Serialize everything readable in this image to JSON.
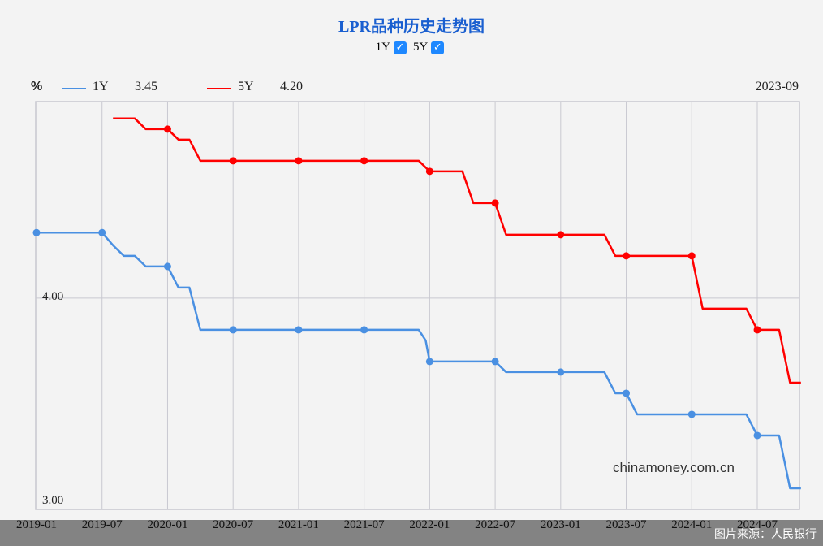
{
  "chart_data": {
    "type": "line",
    "title": "LPR品种历史走势图",
    "unit": "%",
    "crosshair_date": "2023-09",
    "x_ticks": [
      "2019-01",
      "2019-07",
      "2020-01",
      "2020-07",
      "2021-01",
      "2021-07",
      "2022-01",
      "2022-07",
      "2023-01",
      "2023-07",
      "2024-01",
      "2024-07"
    ],
    "y_ticks": [
      "4.00",
      "3.00"
    ],
    "ylim": [
      3.0,
      5.0
    ],
    "grid": true,
    "series": [
      {
        "name": "1Y",
        "color": "#4a90e2",
        "current_value": "3.45",
        "points": [
          [
            "2019-01",
            4.31
          ],
          [
            "2019-07",
            4.31
          ],
          [
            "2019-08",
            4.25
          ],
          [
            "2019-09",
            4.2
          ],
          [
            "2019-10",
            4.2
          ],
          [
            "2019-11",
            4.15
          ],
          [
            "2019-12",
            4.15
          ],
          [
            "2020-01",
            4.15
          ],
          [
            "2020-02",
            4.05
          ],
          [
            "2020-03",
            4.05
          ],
          [
            "2020-04",
            3.85
          ],
          [
            "2020-07",
            3.85
          ],
          [
            "2021-01",
            3.85
          ],
          [
            "2021-07",
            3.85
          ],
          [
            "2021-12",
            3.85
          ],
          [
            "2021-12-20",
            3.8
          ],
          [
            "2022-01",
            3.7
          ],
          [
            "2022-07",
            3.7
          ],
          [
            "2022-08",
            3.65
          ],
          [
            "2023-01",
            3.65
          ],
          [
            "2023-05",
            3.65
          ],
          [
            "2023-06",
            3.55
          ],
          [
            "2023-07",
            3.55
          ],
          [
            "2023-08",
            3.45
          ],
          [
            "2024-01",
            3.45
          ],
          [
            "2024-06",
            3.45
          ],
          [
            "2024-07",
            3.35
          ],
          [
            "2024-09",
            3.35
          ],
          [
            "2024-10",
            3.1
          ],
          [
            "2024-11",
            3.1
          ]
        ],
        "markers": [
          "2019-01",
          "2019-07",
          "2020-01",
          "2020-07",
          "2021-01",
          "2021-07",
          "2022-01",
          "2022-07",
          "2023-01",
          "2023-07",
          "2024-01",
          "2024-07"
        ]
      },
      {
        "name": "5Y",
        "color": "#ff0000",
        "current_value": "4.20",
        "points": [
          [
            "2019-08",
            4.85
          ],
          [
            "2019-10",
            4.85
          ],
          [
            "2019-11",
            4.8
          ],
          [
            "2020-01",
            4.8
          ],
          [
            "2020-02",
            4.75
          ],
          [
            "2020-03",
            4.75
          ],
          [
            "2020-04",
            4.65
          ],
          [
            "2020-07",
            4.65
          ],
          [
            "2021-01",
            4.65
          ],
          [
            "2021-07",
            4.65
          ],
          [
            "2021-12",
            4.65
          ],
          [
            "2022-01",
            4.6
          ],
          [
            "2022-04",
            4.6
          ],
          [
            "2022-05",
            4.45
          ],
          [
            "2022-07",
            4.45
          ],
          [
            "2022-08",
            4.3
          ],
          [
            "2023-01",
            4.3
          ],
          [
            "2023-05",
            4.3
          ],
          [
            "2023-06",
            4.2
          ],
          [
            "2023-07",
            4.2
          ],
          [
            "2024-01",
            4.2
          ],
          [
            "2024-02",
            3.95
          ],
          [
            "2024-06",
            3.95
          ],
          [
            "2024-07",
            3.85
          ],
          [
            "2024-09",
            3.85
          ],
          [
            "2024-10",
            3.6
          ],
          [
            "2024-11",
            3.6
          ]
        ],
        "markers": [
          "2020-01",
          "2020-07",
          "2021-01",
          "2021-07",
          "2022-01",
          "2022-07",
          "2023-01",
          "2023-07",
          "2024-01",
          "2024-07"
        ]
      }
    ]
  },
  "toggles": [
    {
      "label": "1Y",
      "checked": true
    },
    {
      "label": "5Y",
      "checked": true
    }
  ],
  "watermark": "chinamoney.com.cn",
  "image_credit": "图片来源：人民银行"
}
